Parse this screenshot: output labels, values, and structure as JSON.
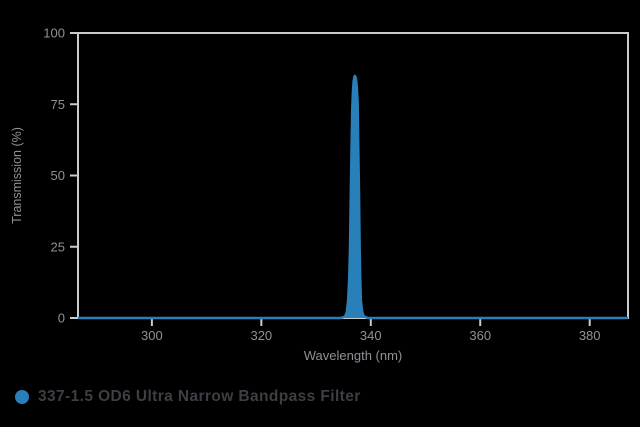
{
  "chart_data": {
    "type": "area",
    "title": "",
    "xlabel": "Wavelength (nm)",
    "ylabel": "Transmission (%)",
    "xlim": [
      286.5,
      387
    ],
    "ylim": [
      0,
      100
    ],
    "x_ticks": [
      300,
      320,
      340,
      360,
      380
    ],
    "y_ticks": [
      0,
      25,
      50,
      75,
      100
    ],
    "grid": false,
    "legend_position": "bottom-left",
    "series": [
      {
        "name": "337-1.5 OD6 Ultra Narrow Bandpass Filter",
        "color": "#2980b9",
        "peak_center_nm": 337,
        "peak_transmission_pct": 85,
        "fwhm_nm": 1.5,
        "baseline_transmission_pct": 0,
        "points": [
          [
            286.5,
            0
          ],
          [
            334.5,
            0
          ],
          [
            335.3,
            0.5
          ],
          [
            335.6,
            2
          ],
          [
            335.85,
            6
          ],
          [
            336.05,
            14
          ],
          [
            336.2,
            25
          ],
          [
            336.35,
            45
          ],
          [
            336.5,
            62
          ],
          [
            336.6,
            73
          ],
          [
            336.72,
            79
          ],
          [
            336.85,
            83
          ],
          [
            337.0,
            84.7
          ],
          [
            337.1,
            85
          ],
          [
            337.3,
            84
          ],
          [
            337.45,
            81
          ],
          [
            337.6,
            76
          ],
          [
            337.7,
            62
          ],
          [
            337.85,
            45
          ],
          [
            337.97,
            25
          ],
          [
            338.08,
            14
          ],
          [
            338.2,
            6
          ],
          [
            338.45,
            2
          ],
          [
            338.75,
            0.5
          ],
          [
            339.5,
            0
          ],
          [
            387,
            0
          ]
        ]
      }
    ]
  },
  "legend": {
    "label": "337-1.5 OD6 Ultra Narrow Bandpass Filter",
    "marker_color": "#2980b9"
  },
  "axes": {
    "x_label": "Wavelength (nm)",
    "y_label": "Transmission (%)"
  },
  "colors": {
    "background": "#000000",
    "axis_line": "#c8cbd0",
    "tick_mark": "#c8cbd0",
    "tick_label": "#8e9196",
    "axis_title": "#8e9196",
    "series_blue": "#2980b9",
    "legend_text": "#3d3f44"
  }
}
